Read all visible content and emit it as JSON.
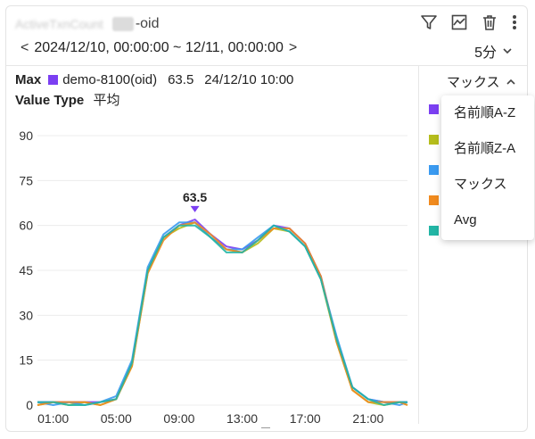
{
  "header": {
    "title_obscured": "ActiveTxnCount",
    "title_suffix": "-oid",
    "toolbar_icons": [
      "filter-icon",
      "chart-icon",
      "trash-icon",
      "more-icon"
    ]
  },
  "range": {
    "prev": "<",
    "text": "2024/12/10, 00:00:00 ~ 12/11, 00:00:00",
    "next": ">"
  },
  "interval": {
    "label": "5分"
  },
  "info": {
    "max_label": "Max",
    "series_name": "demo-8100(oid)",
    "max_value": "63.5",
    "max_time": "24/12/10 10:00",
    "value_type_label": "Value Type",
    "value_type": "平均"
  },
  "legend": {
    "sort_label": "マックス",
    "swatch_colors": [
      "#7b3ff2",
      "#b5bd1c",
      "#3a9af0",
      "#f08a1e",
      "#22b5a5"
    ]
  },
  "dropdown": {
    "items": [
      "名前順A-Z",
      "名前順Z-A",
      "マックス",
      "Avg"
    ]
  },
  "chart_data": {
    "type": "line",
    "x_ticks": [
      "01:00",
      "05:00",
      "09:00",
      "13:00",
      "17:00",
      "21:00"
    ],
    "y_ticks": [
      0,
      15,
      30,
      45,
      60,
      75,
      90
    ],
    "ylim": [
      0,
      90
    ],
    "xlim": [
      0,
      23.5
    ],
    "peak_label": "63.5",
    "peak": {
      "x": 10.0,
      "y": 63.5
    },
    "series": [
      {
        "color": "#7b3ff2",
        "x": [
          0,
          1,
          2,
          3,
          4,
          5,
          6,
          7,
          8,
          9,
          10,
          11,
          12,
          13,
          14,
          15,
          16,
          17,
          18,
          19,
          20,
          21,
          22,
          23,
          23.5
        ],
        "values": [
          1,
          1,
          1,
          1,
          1,
          2,
          14,
          45,
          56,
          60,
          62,
          57,
          53,
          52,
          55,
          60,
          59,
          54,
          43,
          22,
          6,
          2,
          1,
          1,
          1
        ]
      },
      {
        "color": "#b5bd1c",
        "x": [
          0,
          1,
          2,
          3,
          4,
          5,
          6,
          7,
          8,
          9,
          10,
          11,
          12,
          13,
          14,
          15,
          16,
          17,
          18,
          19,
          20,
          21,
          22,
          23,
          23.5
        ],
        "values": [
          0,
          1,
          0,
          1,
          0,
          2,
          13,
          44,
          56,
          59,
          61,
          56,
          52,
          51,
          54,
          59,
          58,
          53,
          42,
          21,
          5,
          1,
          0,
          1,
          0
        ]
      },
      {
        "color": "#3a9af0",
        "x": [
          0,
          1,
          2,
          3,
          4,
          5,
          6,
          7,
          8,
          9,
          10,
          11,
          12,
          13,
          14,
          15,
          16,
          17,
          18,
          19,
          20,
          21,
          22,
          23,
          23.5
        ],
        "values": [
          1,
          0,
          1,
          0,
          1,
          3,
          15,
          46,
          57,
          61,
          61,
          56,
          52,
          52,
          56,
          60,
          58,
          53,
          42,
          23,
          6,
          2,
          1,
          0,
          1
        ]
      },
      {
        "color": "#f08a1e",
        "x": [
          0,
          1,
          2,
          3,
          4,
          5,
          6,
          7,
          8,
          9,
          10,
          11,
          12,
          13,
          14,
          15,
          16,
          17,
          18,
          19,
          20,
          21,
          22,
          23,
          23.5
        ],
        "values": [
          0,
          1,
          1,
          1,
          0,
          2,
          13,
          44,
          55,
          60,
          61,
          57,
          52,
          51,
          55,
          59,
          59,
          54,
          43,
          21,
          5,
          1,
          1,
          1,
          0
        ]
      },
      {
        "color": "#22b5a5",
        "x": [
          0,
          1,
          2,
          3,
          4,
          5,
          6,
          7,
          8,
          9,
          10,
          11,
          12,
          13,
          14,
          15,
          16,
          17,
          18,
          19,
          20,
          21,
          22,
          23,
          23.5
        ],
        "values": [
          1,
          1,
          0,
          0,
          1,
          2,
          14,
          45,
          56,
          60,
          60,
          56,
          51,
          51,
          55,
          60,
          58,
          53,
          42,
          22,
          6,
          2,
          0,
          1,
          1
        ]
      }
    ]
  }
}
